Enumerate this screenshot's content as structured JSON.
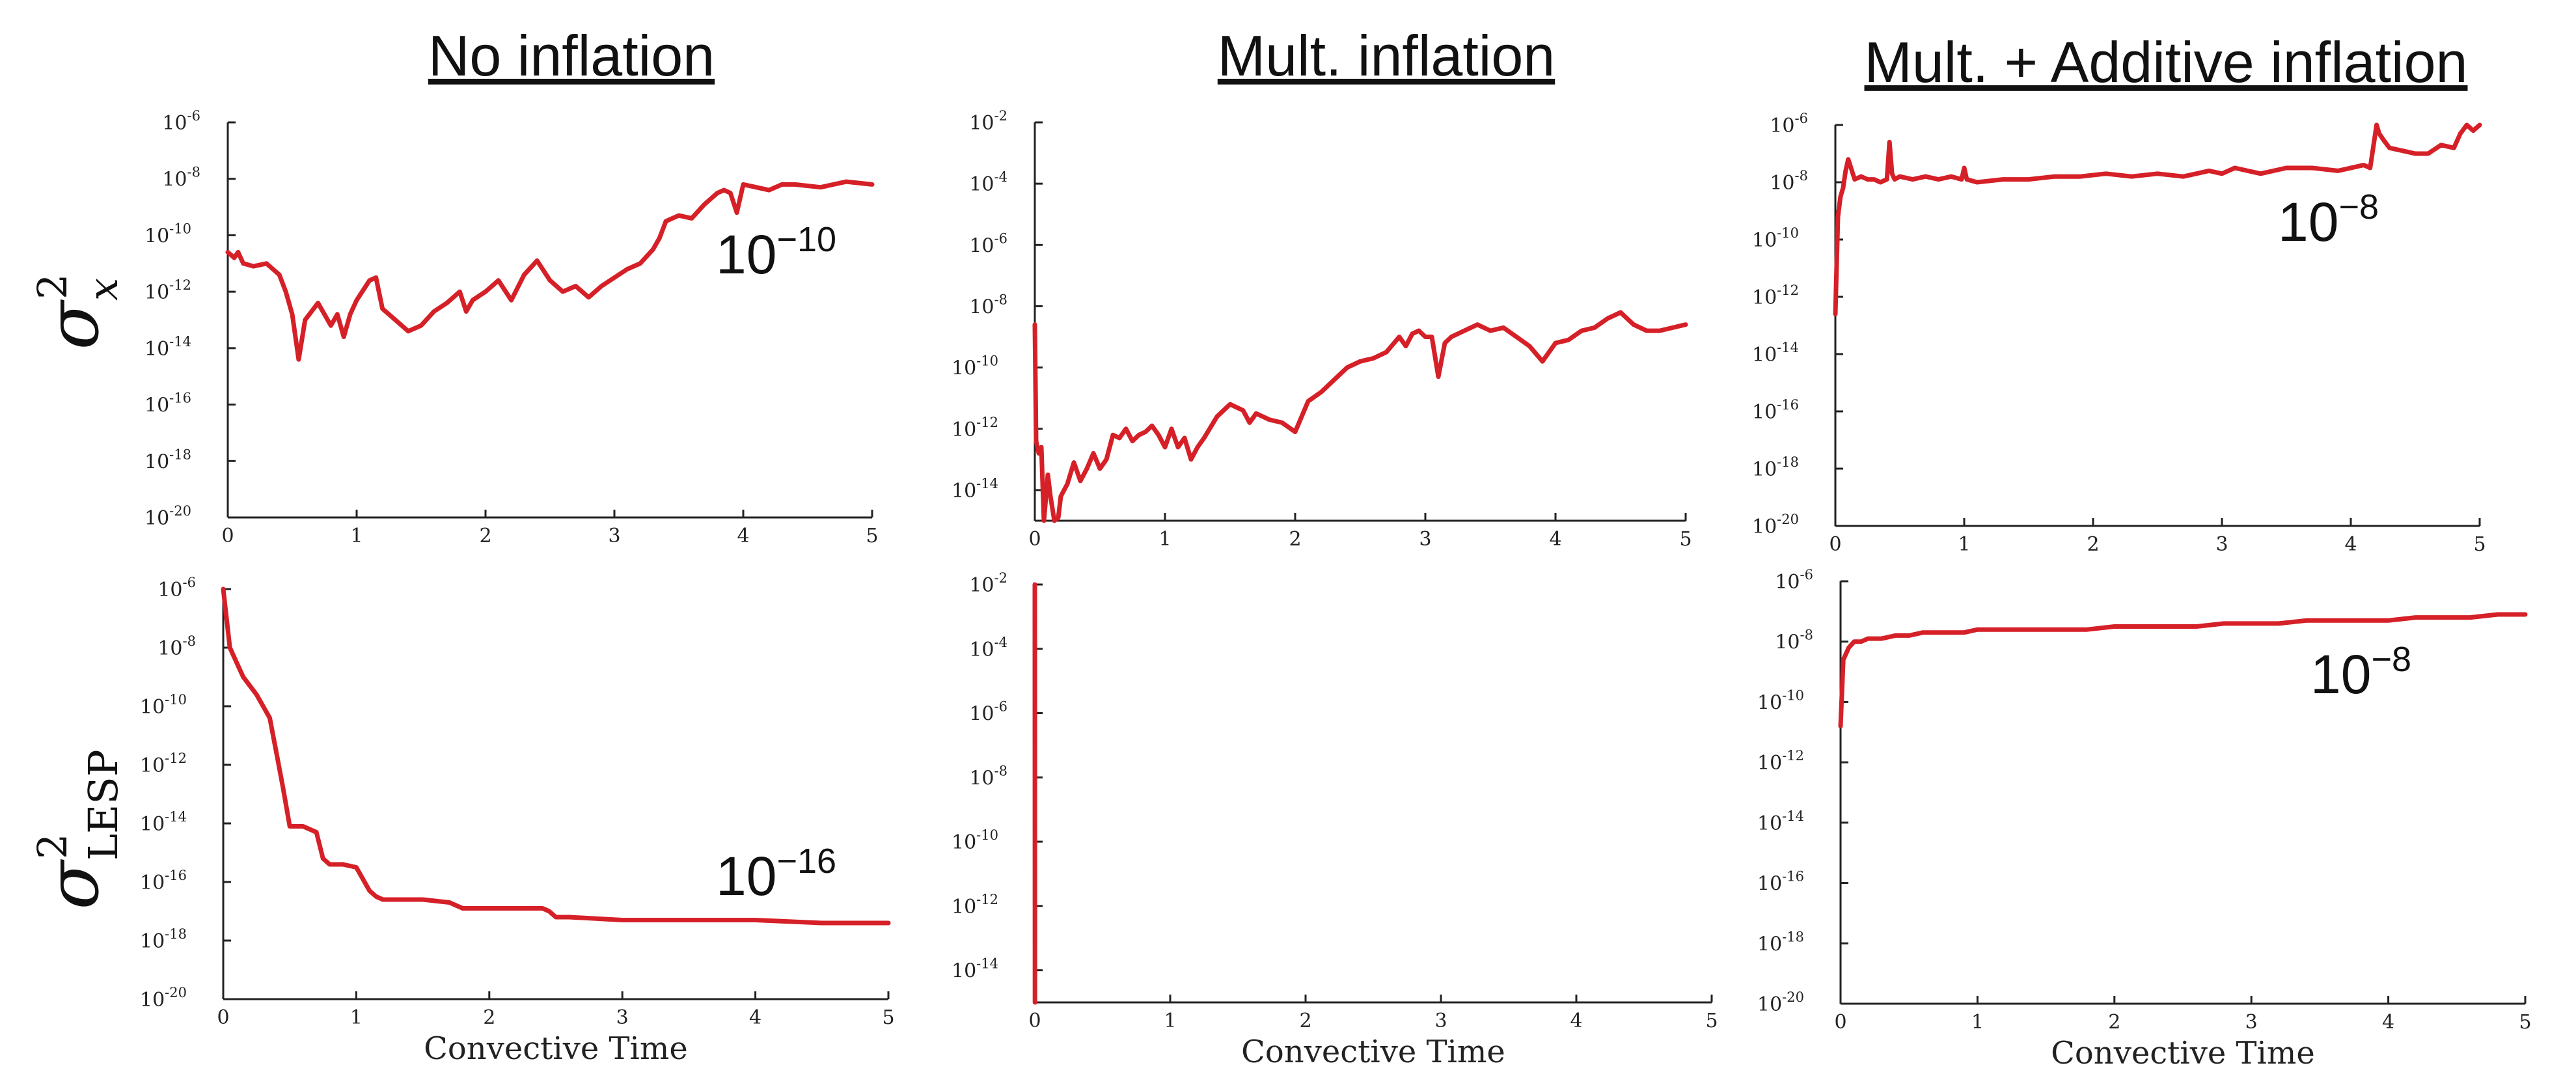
{
  "figure": {
    "columns": [
      {
        "title": "No inflation"
      },
      {
        "title": "Mult. inflation"
      },
      {
        "title": "Mult. + Additive inflation"
      }
    ],
    "rows": [
      {
        "symbol": "σ",
        "superscript": "2",
        "subscript": "x"
      },
      {
        "symbol": "σ",
        "superscript": "2",
        "subscript": "LESP"
      }
    ]
  },
  "colors": {
    "series": "#d62028"
  },
  "chart_data": [
    {
      "id": "p11",
      "type": "line",
      "row": 0,
      "col": 0,
      "yscale": "log",
      "title": "",
      "xlabel": "",
      "ylabel": "",
      "xlim": [
        0,
        5
      ],
      "ylim_exp": [
        -20,
        -6
      ],
      "xticks": [
        0,
        1,
        2,
        3,
        4,
        5
      ],
      "yticks_exp": [
        -20,
        -18,
        -16,
        -14,
        -12,
        -10,
        -8,
        -6
      ],
      "annotation": {
        "base": "10",
        "exp": "−10"
      },
      "series": [
        {
          "x": [
            0,
            0.05,
            0.08,
            0.12,
            0.2,
            0.3,
            0.4,
            0.45,
            0.5,
            0.55,
            0.6,
            0.7,
            0.8,
            0.85,
            0.9,
            0.95,
            1.0,
            1.1,
            1.15,
            1.2,
            1.3,
            1.4,
            1.5,
            1.6,
            1.7,
            1.8,
            1.85,
            1.9,
            2.0,
            2.1,
            2.2,
            2.3,
            2.4,
            2.5,
            2.6,
            2.7,
            2.8,
            2.9,
            3.0,
            3.1,
            3.2,
            3.3,
            3.35,
            3.4,
            3.5,
            3.6,
            3.7,
            3.8,
            3.85,
            3.9,
            3.95,
            4.0,
            4.1,
            4.2,
            4.3,
            4.4,
            4.6,
            4.8,
            5.0
          ],
          "y_exp": [
            -10.6,
            -10.8,
            -10.6,
            -11.0,
            -11.1,
            -11.0,
            -11.4,
            -12.0,
            -12.8,
            -14.4,
            -13.0,
            -12.4,
            -13.2,
            -12.8,
            -13.6,
            -12.8,
            -12.3,
            -11.6,
            -11.5,
            -12.6,
            -13.0,
            -13.4,
            -13.2,
            -12.7,
            -12.4,
            -12.0,
            -12.7,
            -12.3,
            -12.0,
            -11.6,
            -12.3,
            -11.4,
            -10.9,
            -11.6,
            -12.0,
            -11.8,
            -12.2,
            -11.8,
            -11.5,
            -11.2,
            -11.0,
            -10.5,
            -10.1,
            -9.5,
            -9.3,
            -9.4,
            -8.9,
            -8.5,
            -8.4,
            -8.5,
            -9.2,
            -8.2,
            -8.3,
            -8.4,
            -8.2,
            -8.2,
            -8.3,
            -8.1,
            -8.2
          ]
        }
      ]
    },
    {
      "id": "p12",
      "type": "line",
      "row": 0,
      "col": 1,
      "yscale": "log",
      "title": "",
      "xlabel": "",
      "ylabel": "",
      "xlim": [
        0,
        5
      ],
      "ylim_exp": [
        -15,
        -2
      ],
      "xticks": [
        0,
        1,
        2,
        3,
        4,
        5
      ],
      "yticks_exp": [
        -14,
        -12,
        -10,
        -8,
        -6,
        -4,
        -2
      ],
      "annotation": null,
      "series": [
        {
          "x": [
            0,
            0.01,
            0.03,
            0.05,
            0.07,
            0.1,
            0.12,
            0.15,
            0.18,
            0.2,
            0.25,
            0.3,
            0.35,
            0.4,
            0.45,
            0.5,
            0.55,
            0.6,
            0.65,
            0.7,
            0.75,
            0.8,
            0.85,
            0.9,
            0.95,
            1.0,
            1.05,
            1.1,
            1.15,
            1.2,
            1.25,
            1.3,
            1.4,
            1.5,
            1.55,
            1.6,
            1.65,
            1.7,
            1.8,
            1.9,
            2.0,
            2.1,
            2.2,
            2.3,
            2.4,
            2.5,
            2.6,
            2.7,
            2.8,
            2.85,
            2.9,
            2.95,
            3.0,
            3.05,
            3.1,
            3.15,
            3.2,
            3.3,
            3.4,
            3.5,
            3.6,
            3.7,
            3.8,
            3.9,
            4.0,
            4.1,
            4.2,
            4.3,
            4.4,
            4.5,
            4.6,
            4.7,
            4.8,
            4.9,
            5.0
          ],
          "y_exp": [
            -8.6,
            -12.4,
            -12.8,
            -12.6,
            -15.0,
            -13.5,
            -14.2,
            -15.0,
            -14.9,
            -14.2,
            -13.8,
            -13.1,
            -13.7,
            -13.3,
            -12.8,
            -13.3,
            -13.0,
            -12.2,
            -12.3,
            -12.0,
            -12.4,
            -12.2,
            -12.1,
            -11.9,
            -12.2,
            -12.6,
            -12.0,
            -12.6,
            -12.3,
            -13.0,
            -12.6,
            -12.3,
            -11.6,
            -11.2,
            -11.3,
            -11.4,
            -11.8,
            -11.5,
            -11.7,
            -11.8,
            -12.1,
            -11.1,
            -10.8,
            -10.4,
            -10.0,
            -9.8,
            -9.7,
            -9.5,
            -9.0,
            -9.3,
            -8.9,
            -8.8,
            -9.0,
            -9.0,
            -10.3,
            -9.2,
            -9.0,
            -8.8,
            -8.6,
            -8.8,
            -8.7,
            -9.0,
            -9.3,
            -9.8,
            -9.2,
            -9.1,
            -8.8,
            -8.7,
            -8.4,
            -8.2,
            -8.6,
            -8.8,
            -8.8,
            -8.7,
            -8.6
          ]
        }
      ]
    },
    {
      "id": "p13",
      "type": "line",
      "row": 0,
      "col": 2,
      "yscale": "log",
      "title": "",
      "xlabel": "",
      "ylabel": "",
      "xlim": [
        0,
        5
      ],
      "ylim_exp": [
        -20,
        -6
      ],
      "xticks": [
        0,
        1,
        2,
        3,
        4,
        5
      ],
      "yticks_exp": [
        -20,
        -18,
        -16,
        -14,
        -12,
        -10,
        -8,
        -6
      ],
      "annotation": {
        "base": "10",
        "exp": "−8"
      },
      "series": [
        {
          "x": [
            0,
            0.02,
            0.04,
            0.06,
            0.08,
            0.1,
            0.15,
            0.2,
            0.25,
            0.3,
            0.35,
            0.4,
            0.42,
            0.44,
            0.46,
            0.5,
            0.6,
            0.7,
            0.8,
            0.9,
            0.98,
            1.0,
            1.02,
            1.1,
            1.3,
            1.5,
            1.7,
            1.9,
            2.1,
            2.3,
            2.5,
            2.7,
            2.9,
            3.0,
            3.1,
            3.3,
            3.5,
            3.7,
            3.9,
            4.1,
            4.15,
            4.2,
            4.22,
            4.25,
            4.3,
            4.4,
            4.5,
            4.6,
            4.7,
            4.8,
            4.85,
            4.9,
            4.95,
            5.0
          ],
          "y_exp": [
            -12.6,
            -9.2,
            -8.5,
            -8.2,
            -7.6,
            -7.2,
            -7.9,
            -7.8,
            -7.9,
            -7.9,
            -8.0,
            -7.9,
            -6.6,
            -7.7,
            -7.9,
            -7.8,
            -7.9,
            -7.8,
            -7.9,
            -7.8,
            -7.9,
            -7.5,
            -7.9,
            -8.0,
            -7.9,
            -7.9,
            -7.8,
            -7.8,
            -7.7,
            -7.8,
            -7.7,
            -7.8,
            -7.6,
            -7.7,
            -7.5,
            -7.7,
            -7.5,
            -7.5,
            -7.6,
            -7.4,
            -7.5,
            -6.0,
            -6.3,
            -6.5,
            -6.8,
            -6.9,
            -7.0,
            -7.0,
            -6.7,
            -6.8,
            -6.3,
            -6.0,
            -6.2,
            -6.0
          ]
        }
      ]
    },
    {
      "id": "p21",
      "type": "line",
      "row": 1,
      "col": 0,
      "yscale": "log",
      "title": "",
      "xlabel": "Convective Time",
      "ylabel": "",
      "xlim": [
        0,
        5
      ],
      "ylim_exp": [
        -20,
        -6
      ],
      "xticks": [
        0,
        1,
        2,
        3,
        4,
        5
      ],
      "yticks_exp": [
        -20,
        -18,
        -16,
        -14,
        -12,
        -10,
        -8,
        -6
      ],
      "annotation": {
        "base": "10",
        "exp": "−16"
      },
      "series": [
        {
          "x": [
            0,
            0.05,
            0.1,
            0.15,
            0.2,
            0.25,
            0.3,
            0.35,
            0.4,
            0.45,
            0.5,
            0.6,
            0.7,
            0.75,
            0.8,
            0.9,
            1.0,
            1.05,
            1.1,
            1.15,
            1.2,
            1.3,
            1.5,
            1.7,
            1.8,
            2.0,
            2.2,
            2.4,
            2.45,
            2.5,
            2.6,
            3.0,
            3.5,
            4.0,
            4.5,
            5.0
          ],
          "y_exp": [
            -6.0,
            -8.0,
            -8.5,
            -9.0,
            -9.3,
            -9.6,
            -10.0,
            -10.4,
            -11.6,
            -12.8,
            -14.1,
            -14.1,
            -14.3,
            -15.2,
            -15.4,
            -15.4,
            -15.5,
            -15.9,
            -16.3,
            -16.5,
            -16.6,
            -16.6,
            -16.6,
            -16.7,
            -16.9,
            -16.9,
            -16.9,
            -16.9,
            -17.0,
            -17.2,
            -17.2,
            -17.3,
            -17.3,
            -17.3,
            -17.4,
            -17.4
          ]
        }
      ]
    },
    {
      "id": "p22",
      "type": "line",
      "row": 1,
      "col": 1,
      "yscale": "log",
      "title": "",
      "xlabel": "Convective Time",
      "ylabel": "",
      "xlim": [
        0,
        5
      ],
      "ylim_exp": [
        -15,
        -2
      ],
      "xticks": [
        0,
        1,
        2,
        3,
        4,
        5
      ],
      "yticks_exp": [
        -14,
        -12,
        -10,
        -8,
        -6,
        -4,
        -2
      ],
      "annotation": null,
      "series": [
        {
          "x": [
            0,
            0.001
          ],
          "y_exp": [
            -2.0,
            -15.0
          ]
        }
      ]
    },
    {
      "id": "p23",
      "type": "line",
      "row": 1,
      "col": 2,
      "yscale": "log",
      "title": "",
      "xlabel": "Convective Time",
      "ylabel": "",
      "xlim": [
        0,
        5
      ],
      "ylim_exp": [
        -20,
        -6
      ],
      "xticks": [
        0,
        1,
        2,
        3,
        4,
        5
      ],
      "yticks_exp": [
        -20,
        -18,
        -16,
        -14,
        -12,
        -10,
        -8,
        -6
      ],
      "annotation": {
        "base": "10",
        "exp": "−8"
      },
      "series": [
        {
          "x": [
            0,
            0.02,
            0.04,
            0.06,
            0.08,
            0.1,
            0.15,
            0.2,
            0.3,
            0.4,
            0.5,
            0.6,
            0.7,
            0.8,
            0.9,
            1.0,
            1.2,
            1.4,
            1.6,
            1.8,
            2.0,
            2.2,
            2.4,
            2.6,
            2.8,
            3.0,
            3.2,
            3.4,
            3.6,
            3.8,
            4.0,
            4.2,
            4.4,
            4.6,
            4.8,
            5.0
          ],
          "y_exp": [
            -10.8,
            -8.6,
            -8.4,
            -8.2,
            -8.1,
            -8.0,
            -8.0,
            -7.9,
            -7.9,
            -7.8,
            -7.8,
            -7.7,
            -7.7,
            -7.7,
            -7.7,
            -7.6,
            -7.6,
            -7.6,
            -7.6,
            -7.6,
            -7.5,
            -7.5,
            -7.5,
            -7.5,
            -7.4,
            -7.4,
            -7.4,
            -7.3,
            -7.3,
            -7.3,
            -7.3,
            -7.2,
            -7.2,
            -7.2,
            -7.1,
            -7.1
          ]
        }
      ]
    }
  ]
}
